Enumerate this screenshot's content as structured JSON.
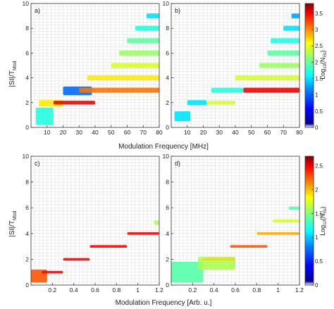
{
  "chart_data": [
    {
      "type": "heatmap",
      "panel_label": "a)",
      "xlabel": "Modulation Frequency [MHz]",
      "ylabel": "ISI/T_Mod",
      "xlim": [
        0,
        80
      ],
      "ylim": [
        0,
        10
      ],
      "xticks": [
        10,
        20,
        30,
        40,
        50,
        60,
        70,
        80
      ],
      "yticks": [
        0,
        2,
        4,
        6,
        8,
        10
      ],
      "grid": true,
      "colorbar_ref": "top",
      "bands": [
        {
          "x": [
            3,
            14
          ],
          "y": [
            0.2,
            1.6
          ],
          "v": 1.8
        },
        {
          "x": [
            5,
            20
          ],
          "y": [
            1.7,
            2.2
          ],
          "v": 2.6
        },
        {
          "x": [
            14,
            40
          ],
          "y": [
            1.85,
            2.15
          ],
          "v": 3.4
        },
        {
          "x": [
            20,
            38
          ],
          "y": [
            2.6,
            3.3
          ],
          "v": 1.2
        },
        {
          "x": [
            30,
            80
          ],
          "y": [
            2.8,
            3.2
          ],
          "v": 3.0
        },
        {
          "x": [
            35,
            80
          ],
          "y": [
            3.8,
            4.2
          ],
          "v": 2.6
        },
        {
          "x": [
            50,
            80
          ],
          "y": [
            4.8,
            5.2
          ],
          "v": 2.4
        },
        {
          "x": [
            55,
            80
          ],
          "y": [
            5.8,
            6.2
          ],
          "v": 2.2
        },
        {
          "x": [
            60,
            80
          ],
          "y": [
            6.8,
            7.2
          ],
          "v": 2.0
        },
        {
          "x": [
            65,
            80
          ],
          "y": [
            7.8,
            8.2
          ],
          "v": 1.8
        },
        {
          "x": [
            72,
            80
          ],
          "y": [
            8.8,
            9.2
          ],
          "v": 1.6
        }
      ]
    },
    {
      "type": "heatmap",
      "panel_label": "b)",
      "xlabel": "Modulation Frequency [MHz]",
      "ylabel": "",
      "xlim": [
        0,
        80
      ],
      "ylim": [
        0,
        10
      ],
      "xticks": [
        10,
        20,
        30,
        40,
        50,
        60,
        70,
        80
      ],
      "yticks": [
        0,
        2,
        4,
        6,
        8,
        10
      ],
      "grid": true,
      "colorbar_ref": "top",
      "bands": [
        {
          "x": [
            2,
            12
          ],
          "y": [
            0.5,
            1.3
          ],
          "v": 1.6
        },
        {
          "x": [
            10,
            22
          ],
          "y": [
            1.8,
            2.2
          ],
          "v": 1.6
        },
        {
          "x": [
            22,
            40
          ],
          "y": [
            1.85,
            2.15
          ],
          "v": 2.4
        },
        {
          "x": [
            25,
            45
          ],
          "y": [
            2.8,
            3.2
          ],
          "v": 1.8
        },
        {
          "x": [
            45,
            80
          ],
          "y": [
            2.8,
            3.2
          ],
          "v": 3.4
        },
        {
          "x": [
            40,
            80
          ],
          "y": [
            3.8,
            4.2
          ],
          "v": 2.4
        },
        {
          "x": [
            55,
            80
          ],
          "y": [
            4.8,
            5.2
          ],
          "v": 2.2
        },
        {
          "x": [
            60,
            80
          ],
          "y": [
            5.8,
            6.2
          ],
          "v": 2.0
        },
        {
          "x": [
            62,
            80
          ],
          "y": [
            6.8,
            7.2
          ],
          "v": 1.8
        },
        {
          "x": [
            70,
            80
          ],
          "y": [
            7.8,
            8.2
          ],
          "v": 1.6
        },
        {
          "x": [
            75,
            80
          ],
          "y": [
            8.8,
            9.2
          ],
          "v": 1.4
        }
      ]
    },
    {
      "type": "heatmap",
      "panel_label": "c)",
      "xlabel": "Modulation Frequency [Arb. u.]",
      "ylabel": "ISI/T_Mod",
      "xlim": [
        0,
        1.2
      ],
      "ylim": [
        0,
        10
      ],
      "xticks": [
        0.2,
        0.4,
        0.6,
        0.8,
        1,
        1.2
      ],
      "yticks": [
        0,
        2,
        4,
        6,
        8,
        10
      ],
      "grid": true,
      "colorbar_ref": "bottom",
      "bands": [
        {
          "x": [
            0.0,
            0.15
          ],
          "y": [
            0.2,
            1.2
          ],
          "v": 2.2
        },
        {
          "x": [
            0.1,
            0.3
          ],
          "y": [
            0.9,
            1.1
          ],
          "v": 2.4
        },
        {
          "x": [
            0.3,
            0.55
          ],
          "y": [
            1.9,
            2.1
          ],
          "v": 2.4
        },
        {
          "x": [
            0.55,
            0.9
          ],
          "y": [
            2.9,
            3.1
          ],
          "v": 2.4
        },
        {
          "x": [
            0.9,
            1.2
          ],
          "y": [
            3.9,
            4.1
          ],
          "v": 2.4
        },
        {
          "x": [
            1.15,
            1.2
          ],
          "y": [
            4.7,
            5.0
          ],
          "v": 1.6
        }
      ]
    },
    {
      "type": "heatmap",
      "panel_label": "d)",
      "xlabel": "Modulation Frequency [Arb. u.]",
      "ylabel": "",
      "xlim": [
        0,
        1.2
      ],
      "ylim": [
        0,
        10
      ],
      "xticks": [
        0.2,
        0.4,
        0.6,
        0.8,
        1,
        1.2
      ],
      "yticks": [
        0,
        2,
        4,
        6,
        8,
        10
      ],
      "grid": true,
      "colorbar_ref": "bottom",
      "bands": [
        {
          "x": [
            0.0,
            0.3
          ],
          "y": [
            0.2,
            1.8
          ],
          "v": 1.4
        },
        {
          "x": [
            0.25,
            0.6
          ],
          "y": [
            1.2,
            2.2
          ],
          "v": 1.6
        },
        {
          "x": [
            0.3,
            0.6
          ],
          "y": [
            1.9,
            2.1
          ],
          "v": 1.9
        },
        {
          "x": [
            0.55,
            0.9
          ],
          "y": [
            2.9,
            3.1
          ],
          "v": 2.2
        },
        {
          "x": [
            0.8,
            1.2
          ],
          "y": [
            3.9,
            4.1
          ],
          "v": 2.0
        },
        {
          "x": [
            0.95,
            1.2
          ],
          "y": [
            4.85,
            5.1
          ],
          "v": 1.7
        },
        {
          "x": [
            1.1,
            1.2
          ],
          "y": [
            5.85,
            6.1
          ],
          "v": 1.4
        }
      ]
    }
  ],
  "colorbars": [
    {
      "id": "top",
      "label": "Log₁₀(N_ISI)",
      "range": [
        0,
        3.8
      ],
      "ticks": [
        0,
        0.5,
        1,
        1.5,
        2,
        2.5,
        3,
        3.5
      ],
      "tick_labels": [
        "0",
        "0.5",
        "1",
        "1.5",
        "2",
        "2.5",
        "3",
        "3.5"
      ],
      "colormap": [
        "#ffffff",
        "#00008f",
        "#0000ff",
        "#0080ff",
        "#00ffff",
        "#80ff80",
        "#ffff00",
        "#ff8000",
        "#ff0000",
        "#800000"
      ]
    },
    {
      "id": "bottom",
      "label": "Log₁₀(N_ISI)",
      "range": [
        0,
        2.7
      ],
      "ticks": [
        0,
        0.5,
        1,
        1.5,
        2,
        2.5
      ],
      "tick_labels": [
        "0",
        "0.5",
        "1",
        "1.5",
        "2",
        "2.5"
      ],
      "colormap": [
        "#ffffff",
        "#00008f",
        "#0000ff",
        "#0080ff",
        "#00ffff",
        "#80ff80",
        "#ffff00",
        "#ff8000",
        "#ff0000",
        "#800000"
      ]
    }
  ],
  "labels": {
    "xlabel_top": "Modulation Frequency [MHz]",
    "xlabel_bottom": "Modulation Frequency [Arb. u.]",
    "ylabel_main": "|SI|/T",
    "ylabel_sub": "Mod",
    "cbar_main": "Log",
    "cbar_base": "10",
    "cbar_arg": "(N",
    "cbar_sub": "ISI",
    "cbar_close": ")"
  }
}
